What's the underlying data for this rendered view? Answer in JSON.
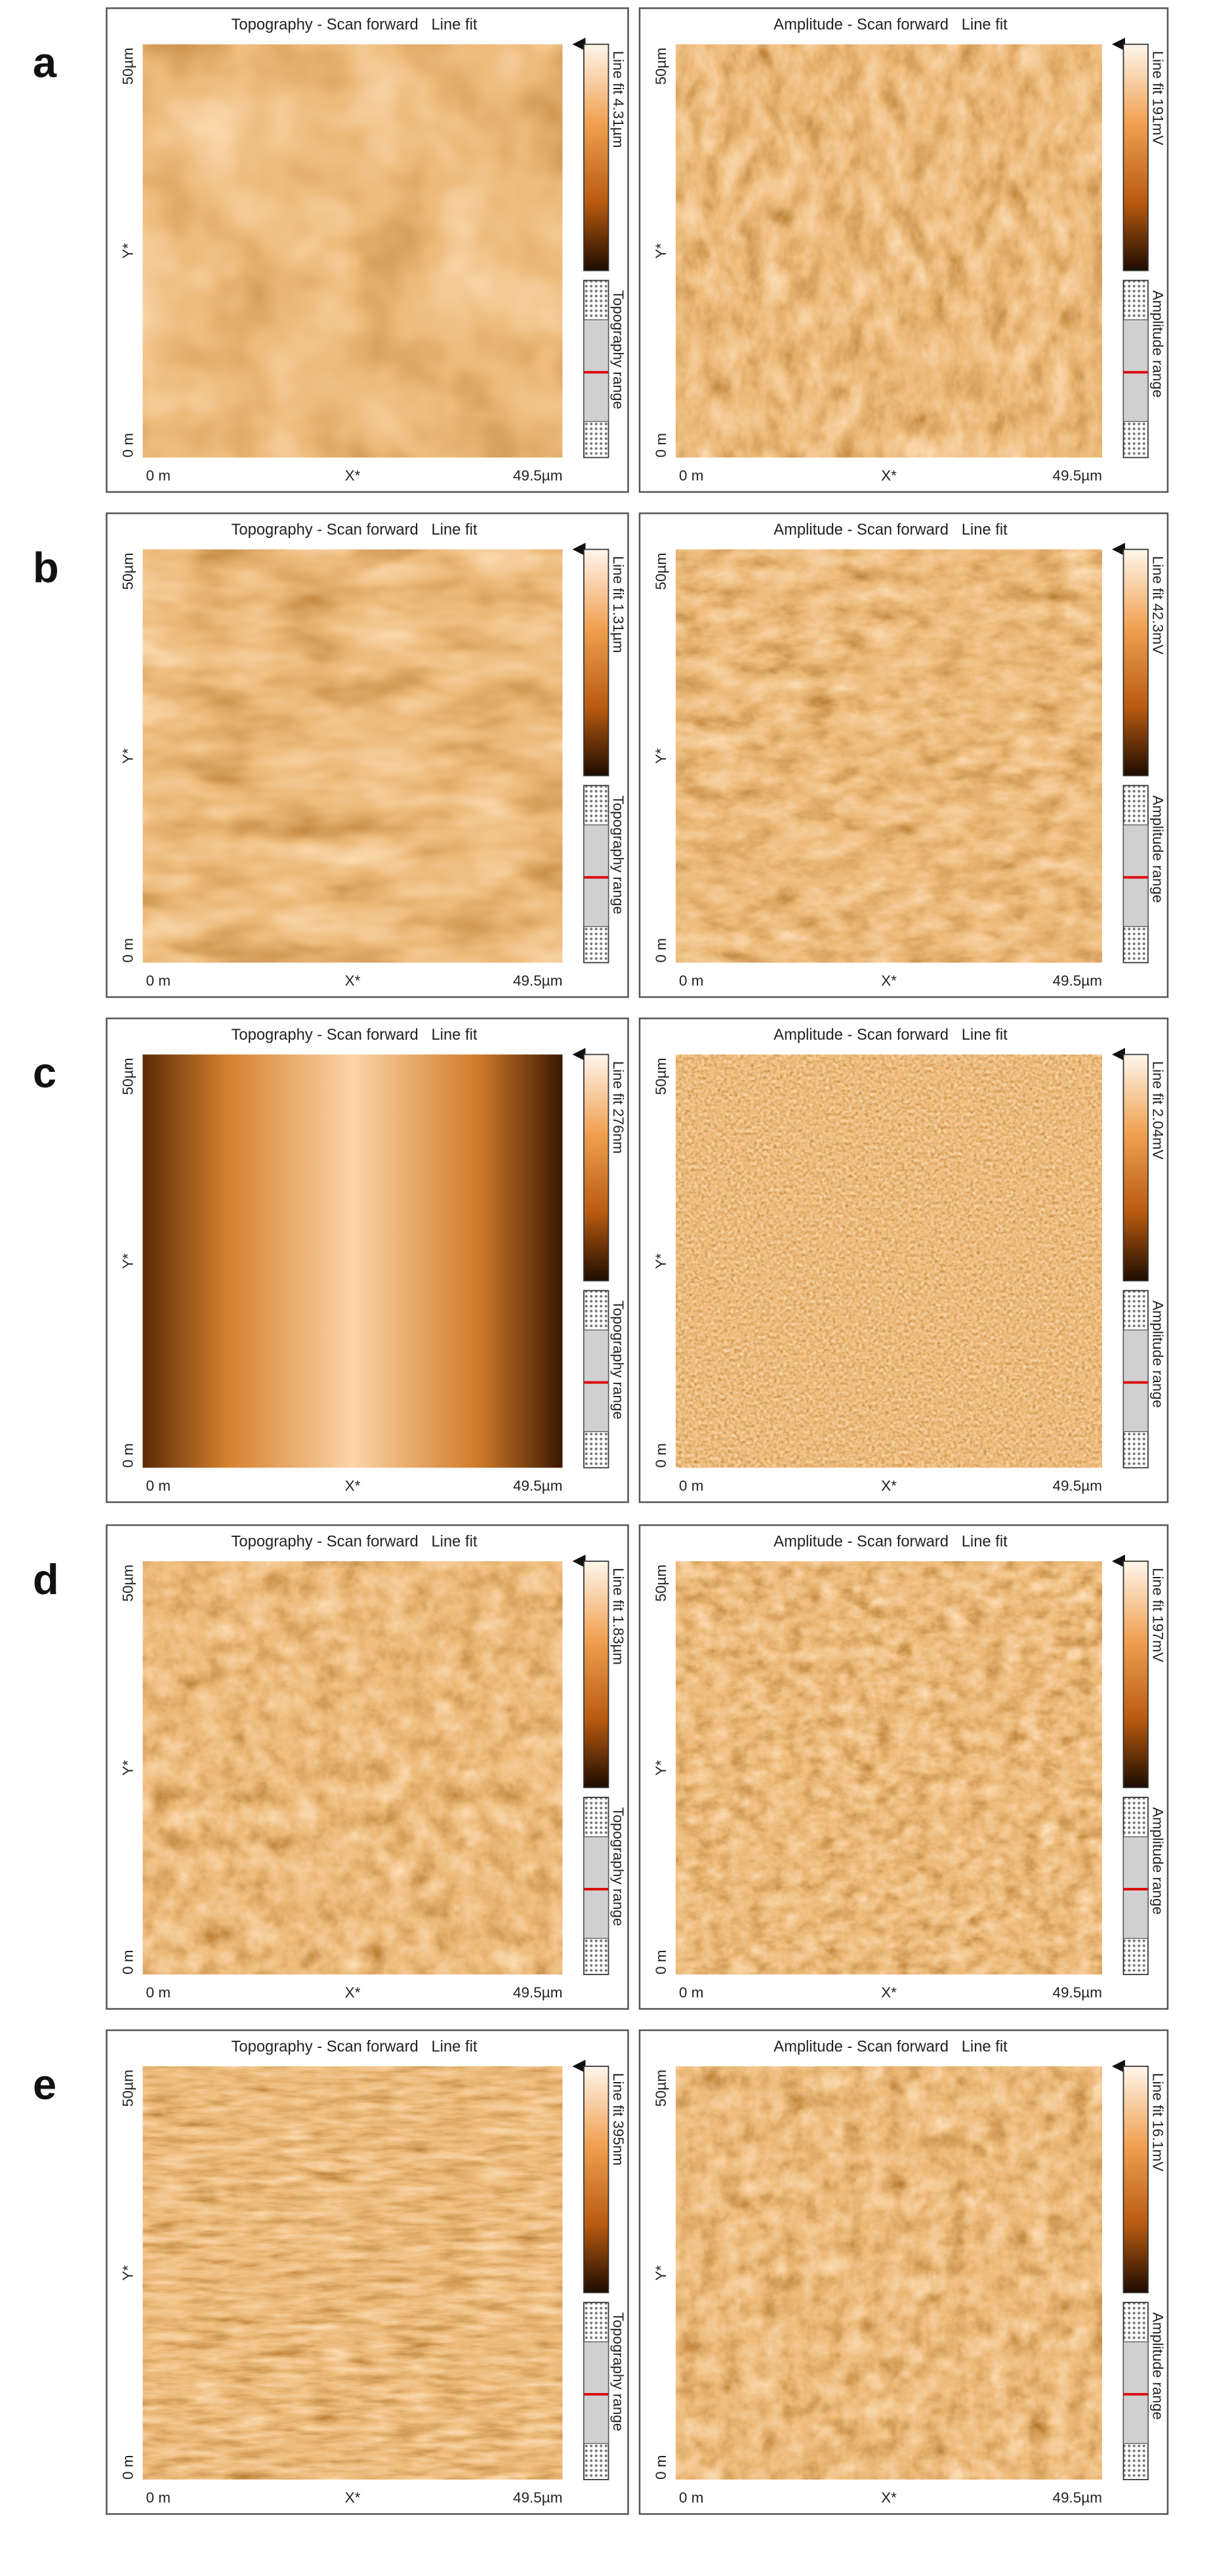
{
  "figure": {
    "rows": [
      {
        "label": "a",
        "panels": [
          {
            "title": "Topography - Scan forward   Line fit",
            "y_max": "50µm",
            "y_axis": "Y*",
            "y_min": "0 m",
            "x_min": "0 m",
            "x_axis": "X*",
            "x_max": "49.5µm",
            "scale": "Line fit 4.31µm",
            "range": "Topography range"
          },
          {
            "title": "Amplitude - Scan forward   Line fit",
            "y_max": "50µm",
            "y_axis": "Y*",
            "y_min": "0 m",
            "x_min": "0 m",
            "x_axis": "X*",
            "x_max": "49.5µm",
            "scale": "Line fit 191mV",
            "range": "Amplitude range"
          }
        ]
      },
      {
        "label": "b",
        "panels": [
          {
            "title": "Topography - Scan forward   Line fit",
            "y_max": "50µm",
            "y_axis": "Y*",
            "y_min": "0 m",
            "x_min": "0 m",
            "x_axis": "X*",
            "x_max": "49.5µm",
            "scale": "Line fit 1.31µm",
            "range": "Topography range"
          },
          {
            "title": "Amplitude - Scan forward   Line fit",
            "y_max": "50µm",
            "y_axis": "Y*",
            "y_min": "0 m",
            "x_min": "0 m",
            "x_axis": "X*",
            "x_max": "49.5µm",
            "scale": "Line fit 42.3mV",
            "range": "Amplitude range"
          }
        ]
      },
      {
        "label": "c",
        "panels": [
          {
            "title": "Topography - Scan forward   Line fit",
            "y_max": "50µm",
            "y_axis": "Y*",
            "y_min": "0 m",
            "x_min": "0 m",
            "x_axis": "X*",
            "x_max": "49.5µm",
            "scale": "Line fit 276nm",
            "range": "Topography range"
          },
          {
            "title": "Amplitude - Scan forward   Line fit",
            "y_max": "50µm",
            "y_axis": "Y*",
            "y_min": "0 m",
            "x_min": "0 m",
            "x_axis": "X*",
            "x_max": "49.5µm",
            "scale": "Line fit 2.04mV",
            "range": "Amplitude range"
          }
        ]
      },
      {
        "label": "d",
        "panels": [
          {
            "title": "Topography - Scan forward   Line fit",
            "y_max": "50µm",
            "y_axis": "Y*",
            "y_min": "0 m",
            "x_min": "0 m",
            "x_axis": "X*",
            "x_max": "49.5µm",
            "scale": "Line fit 1.83µm",
            "range": "Topography range"
          },
          {
            "title": "Amplitude - Scan forward   Line fit",
            "y_max": "50µm",
            "y_axis": "Y*",
            "y_min": "0 m",
            "x_min": "0 m",
            "x_axis": "X*",
            "x_max": "49.5µm",
            "scale": "Line fit 197mV",
            "range": "Amplitude range"
          }
        ]
      },
      {
        "label": "e",
        "panels": [
          {
            "title": "Topography - Scan forward   Line fit",
            "y_max": "50µm",
            "y_axis": "Y*",
            "y_min": "0 m",
            "x_min": "0 m",
            "x_axis": "X*",
            "x_max": "49.5µm",
            "scale": "Line fit 395nm",
            "range": "Topography range"
          },
          {
            "title": "Amplitude - Scan forward   Line fit",
            "y_max": "50µm",
            "y_axis": "Y*",
            "y_min": "0 m",
            "x_min": "0 m",
            "x_axis": "X*",
            "x_max": "49.5µm",
            "scale": "Line fit 16.1mV",
            "range": "Amplitude range"
          }
        ]
      }
    ]
  }
}
